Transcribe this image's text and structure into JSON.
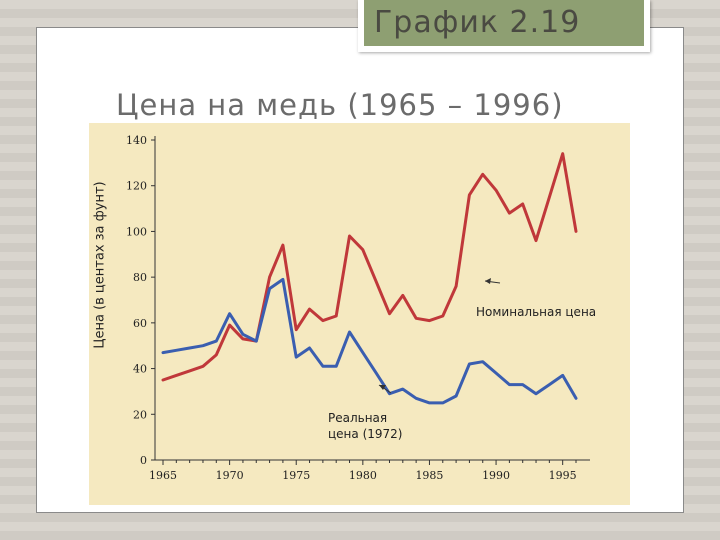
{
  "header": {
    "badge": "График 2.19",
    "title": "Цена на медь (1965 – 1996)"
  },
  "colors": {
    "nominal": "#c0383a",
    "real": "#3a5eb0",
    "chart_bg": "#f5e9c0",
    "badge_bg": "#8e9f72"
  },
  "chart_data": {
    "type": "line",
    "title": "",
    "xlabel": "",
    "ylabel": "Цена (в центах за фунт)",
    "xlim": [
      1965,
      1996
    ],
    "ylim": [
      0,
      140
    ],
    "xticks": [
      1965,
      1970,
      1975,
      1980,
      1985,
      1990,
      1995
    ],
    "yticks": [
      0,
      20,
      40,
      60,
      80,
      100,
      120,
      140
    ],
    "grid": false,
    "series": [
      {
        "name": "Номинальная цена",
        "color": "#c0383a",
        "x": [
          1965,
          1966,
          1967,
          1968,
          1969,
          1970,
          1971,
          1972,
          1973,
          1974,
          1975,
          1976,
          1977,
          1978,
          1979,
          1980,
          1981,
          1982,
          1983,
          1984,
          1985,
          1986,
          1987,
          1988,
          1989,
          1990,
          1991,
          1992,
          1993,
          1994,
          1995,
          1996
        ],
        "values": [
          35,
          37,
          39,
          41,
          46,
          59,
          53,
          52,
          80,
          94,
          57,
          66,
          61,
          63,
          98,
          92,
          78,
          64,
          72,
          62,
          61,
          63,
          76,
          116,
          125,
          118,
          108,
          112,
          96,
          115,
          134,
          100
        ]
      },
      {
        "name": "Реальная цена (1972)",
        "color": "#3a5eb0",
        "x": [
          1965,
          1966,
          1967,
          1968,
          1969,
          1970,
          1971,
          1972,
          1973,
          1974,
          1975,
          1976,
          1977,
          1978,
          1979,
          1980,
          1981,
          1982,
          1983,
          1984,
          1985,
          1986,
          1987,
          1988,
          1989,
          1990,
          1991,
          1992,
          1993,
          1994,
          1995,
          1996
        ],
        "values": [
          47,
          48,
          49,
          50,
          52,
          64,
          55,
          52,
          75,
          79,
          45,
          49,
          41,
          41,
          56,
          47,
          38,
          29,
          31,
          27,
          25,
          25,
          28,
          42,
          43,
          38,
          33,
          33,
          29,
          33,
          37,
          27
        ]
      }
    ],
    "annotations": [
      {
        "text": "Номинальная цена",
        "series": 0
      },
      {
        "text": "Реальная цена (1972)",
        "series": 1
      }
    ]
  }
}
